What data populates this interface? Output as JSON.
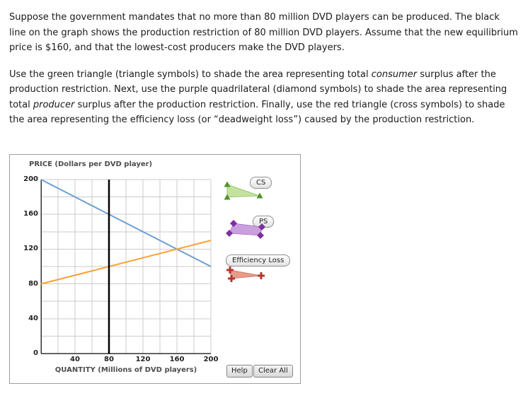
{
  "instructions": {
    "para1": "Suppose the government mandates that no more than 80 million DVD players can be produced. The black line on the graph shows the production restriction of 80 million DVD players. Assume that the new equilibrium price is $160, and that the lowest-cost producers make the DVD players.",
    "para2": {
      "part1": "Use the green triangle (triangle symbols) to shade the area representing total ",
      "italic1": "consumer",
      "part2": " surplus after the production restriction. Next, use the purple quadrilateral (diamond symbols) to shade the area representing total ",
      "italic2": "producer",
      "part3": " surplus after the production restriction. Finally, use the red triangle (cross symbols) to shade the area representing the efficiency loss (or “deadweight loss”) caused by the production restriction."
    }
  },
  "graph": {
    "y_axis_title": "PRICE (Dollars per DVD player)",
    "x_axis_title": "QUANTITY (Millions of DVD players)",
    "y_ticks": [
      "200",
      "160",
      "120",
      "80",
      "40",
      "0"
    ],
    "x_ticks": [
      "40",
      "80",
      "120",
      "160",
      "200"
    ]
  },
  "legend": {
    "cs": {
      "label": "CS",
      "symbol": "triangle",
      "fill": "#c3e2a0",
      "marker_color": "#4f9427"
    },
    "ps": {
      "label": "PS",
      "symbol": "diamond",
      "fill": "#c9a0dc",
      "marker_color": "#7d2f9e"
    },
    "el": {
      "label": "Efficiency Loss",
      "symbol": "cross",
      "fill": "#e79c8a",
      "marker_color": "#b2372b"
    }
  },
  "buttons": {
    "help": "Help",
    "clear_all": "Clear All"
  },
  "chart_data": {
    "type": "line",
    "title": "",
    "xlabel": "QUANTITY (Millions of DVD players)",
    "ylabel": "PRICE (Dollars per DVD player)",
    "xlim": [
      0,
      200
    ],
    "ylim": [
      0,
      200
    ],
    "grid_step": 20,
    "tick_step": 40,
    "grid": true,
    "series": [
      {
        "name": "Demand",
        "color": "#6f9fd0",
        "x": [
          0,
          200
        ],
        "y": [
          200,
          100
        ]
      },
      {
        "name": "Supply",
        "color": "#ffa030",
        "x": [
          0,
          200
        ],
        "y": [
          80,
          130
        ]
      },
      {
        "name": "Production restriction",
        "color": "#000000",
        "x": [
          80,
          80
        ],
        "y": [
          0,
          200
        ]
      }
    ]
  }
}
